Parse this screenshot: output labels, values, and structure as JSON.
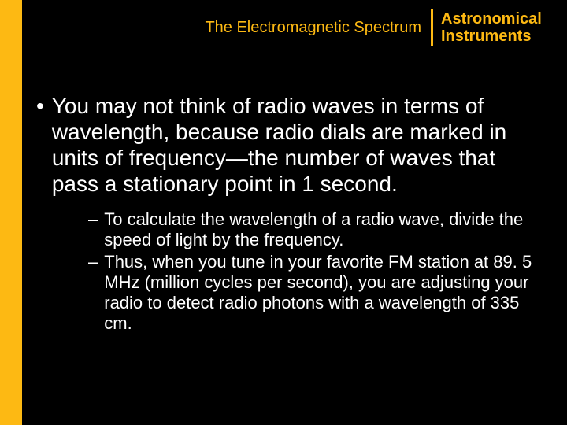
{
  "header": {
    "subtitle": "The Electromagnetic Spectrum",
    "title_line1": "Astronomical",
    "title_line2": "Instruments"
  },
  "main": {
    "bullet_char": "•",
    "text": "You may not think of radio waves in terms of wavelength, because radio dials are marked in units of frequency—the number of waves that pass a stationary point in 1 second."
  },
  "subs": {
    "dash_char": "–",
    "item1": "To calculate the wavelength of a radio wave, divide the speed of light by the frequency.",
    "item2": "Thus, when you tune in your favorite FM station at 89. 5 MHz (million cycles per second), you are adjusting your radio to detect radio photons with a wavelength of 335 cm."
  },
  "colors": {
    "background": "#000000",
    "accent": "#fdb913",
    "text": "#ffffff"
  }
}
